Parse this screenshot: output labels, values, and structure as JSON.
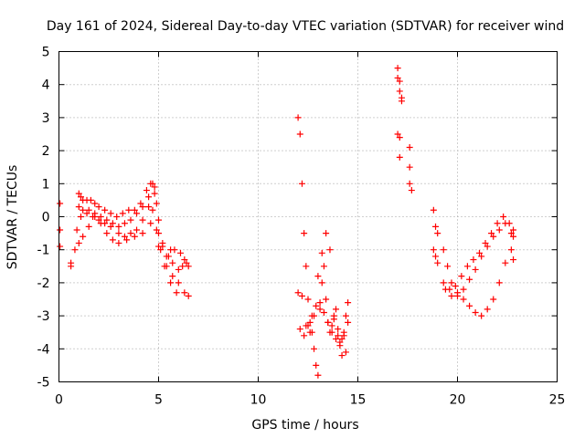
{
  "chart_data": {
    "type": "scatter",
    "title": "Day 161 of 2024, Sidereal Day-to-day VTEC variation (SDTVAR) for receiver wind",
    "xlabel": "GPS time / hours",
    "ylabel": "SDTVAR / TECUs",
    "xlim": [
      0,
      25
    ],
    "ylim": [
      -5,
      5
    ],
    "xticks": [
      0,
      5,
      10,
      15,
      20,
      25
    ],
    "yticks": [
      -5,
      -4,
      -3,
      -2,
      -1,
      0,
      1,
      2,
      3,
      4,
      5
    ],
    "xtick_labels": [
      "0",
      "5",
      "10",
      "15",
      "20",
      "25"
    ],
    "ytick_labels": [
      "-5",
      "-4",
      "-3",
      "-2",
      "-1",
      "0",
      "1",
      "2",
      "3",
      "4",
      "5"
    ],
    "grid": true,
    "marker": "+",
    "series": [
      {
        "name": "SDTVAR",
        "color": "#ff0000",
        "x": [
          0.05,
          0.05,
          0.05,
          0.6,
          0.6,
          1.0,
          1.1,
          1.2,
          1.4,
          1.6,
          1.8,
          2.0,
          2.3,
          2.6,
          2.9,
          3.2,
          3.5,
          3.8,
          4.1,
          4.4,
          4.6,
          4.7,
          4.8,
          4.9,
          5.0,
          5.2,
          5.4,
          5.6,
          5.8,
          6.1,
          6.3,
          6.5,
          1.0,
          1.2,
          1.5,
          1.8,
          2.1,
          2.4,
          2.7,
          3.0,
          3.3,
          3.6,
          3.9,
          4.2,
          4.5,
          4.8,
          5.0,
          5.2,
          5.5,
          5.7,
          6.0,
          6.2,
          6.4,
          0.9,
          1.1,
          1.4,
          1.7,
          2.0,
          2.3,
          2.6,
          3.0,
          3.3,
          3.6,
          3.9,
          4.2,
          4.5,
          4.7,
          4.9,
          5.1,
          5.4,
          5.7,
          6.0,
          0.8,
          1.0,
          1.2,
          1.5,
          1.8,
          2.1,
          2.4,
          2.7,
          3.0,
          3.4,
          3.8,
          4.2,
          4.6,
          5.0,
          5.3,
          5.6,
          5.9,
          6.3,
          6.5,
          12.0,
          12.1,
          12.2,
          12.3,
          12.4,
          12.5,
          12.6,
          12.7,
          12.8,
          12.9,
          13.0,
          13.1,
          13.2,
          13.3,
          13.4,
          13.5,
          13.6,
          13.7,
          13.8,
          13.9,
          14.0,
          14.1,
          14.2,
          14.3,
          14.4,
          14.5,
          12.0,
          12.2,
          12.4,
          12.6,
          12.8,
          13.0,
          13.2,
          13.4,
          13.6,
          13.8,
          14.0,
          14.2,
          14.4,
          12.1,
          12.3,
          12.5,
          12.7,
          12.9,
          13.1,
          13.3,
          13.5,
          13.7,
          13.9,
          14.1,
          14.3,
          14.5,
          17.0,
          17.0,
          17.1,
          17.1,
          17.2,
          17.2,
          17.0,
          17.1,
          17.1,
          17.6,
          17.6,
          17.6,
          17.7,
          18.8,
          18.9,
          19.0,
          18.8,
          18.9,
          19.0,
          19.3,
          19.5,
          19.7,
          20.0,
          20.3,
          20.6,
          20.9,
          21.2,
          21.5,
          21.8,
          22.1,
          22.4,
          22.7,
          22.8,
          19.3,
          19.6,
          19.9,
          20.2,
          20.5,
          20.8,
          21.1,
          21.4,
          21.7,
          22.0,
          22.3,
          22.6,
          22.8,
          19.4,
          19.7,
          20.0,
          20.3,
          20.6,
          20.9,
          21.2,
          21.5,
          21.8,
          22.1,
          22.4,
          22.7,
          22.8
        ],
        "y": [
          0.4,
          -0.4,
          -0.9,
          -1.4,
          -1.5,
          0.7,
          0.6,
          0.5,
          0.5,
          0.5,
          0.4,
          0.3,
          0.2,
          0.1,
          0.0,
          0.1,
          0.2,
          0.2,
          0.4,
          0.8,
          1.0,
          1.0,
          0.9,
          0.4,
          -0.5,
          -0.9,
          -1.2,
          -1.0,
          -1.0,
          -1.1,
          -1.3,
          -1.5,
          0.3,
          0.2,
          0.2,
          0.1,
          0.0,
          -0.1,
          -0.2,
          -0.3,
          -0.2,
          -0.1,
          0.1,
          0.3,
          0.6,
          0.7,
          -0.1,
          -0.8,
          -1.2,
          -1.4,
          -1.6,
          -1.5,
          -1.4,
          -0.4,
          0.0,
          0.1,
          0.0,
          -0.1,
          -0.2,
          -0.3,
          -0.5,
          -0.6,
          -0.5,
          -0.4,
          -0.1,
          0.3,
          0.2,
          -0.4,
          -1.0,
          -1.5,
          -1.8,
          -2.0,
          -1.0,
          -0.8,
          -0.6,
          -0.3,
          0.0,
          -0.2,
          -0.5,
          -0.7,
          -0.8,
          -0.7,
          -0.6,
          -0.5,
          -0.2,
          -0.9,
          -1.5,
          -2.0,
          -2.3,
          -2.3,
          -2.4,
          3.0,
          2.5,
          1.0,
          -0.5,
          -1.5,
          -2.5,
          -3.2,
          -3.5,
          -4.0,
          -4.5,
          -4.8,
          -2.8,
          -2.0,
          -1.5,
          -2.5,
          -3.2,
          -3.5,
          -3.3,
          -3.0,
          -2.8,
          -3.6,
          -3.9,
          -4.2,
          -3.6,
          -3.0,
          -2.6,
          -2.3,
          -2.4,
          -3.3,
          -3.5,
          -3.0,
          -1.8,
          -1.1,
          -0.5,
          -1.0,
          -3.1,
          -3.4,
          -3.7,
          -4.1,
          -3.4,
          -3.6,
          -3.3,
          -3.0,
          -2.7,
          -2.6,
          -2.9,
          -3.2,
          -3.5,
          -3.7,
          -3.8,
          -3.5,
          -3.2,
          4.5,
          4.2,
          4.1,
          3.8,
          3.6,
          3.5,
          2.5,
          2.4,
          1.8,
          2.1,
          1.5,
          1.0,
          0.8,
          0.2,
          -0.3,
          -0.5,
          -1.0,
          -1.2,
          -1.4,
          -1.0,
          -1.5,
          -2.0,
          -2.3,
          -2.5,
          -2.7,
          -2.9,
          -3.0,
          -2.8,
          -2.5,
          -2.0,
          -1.4,
          -1.0,
          -0.6,
          -2.0,
          -2.2,
          -2.1,
          -1.8,
          -1.5,
          -1.3,
          -1.1,
          -0.8,
          -0.5,
          -0.2,
          0.0,
          -0.2,
          -0.4,
          -2.2,
          -2.4,
          -2.4,
          -2.2,
          -1.9,
          -1.6,
          -1.2,
          -0.9,
          -0.6,
          -0.4,
          -0.2,
          -0.5,
          -1.3
        ]
      }
    ]
  }
}
